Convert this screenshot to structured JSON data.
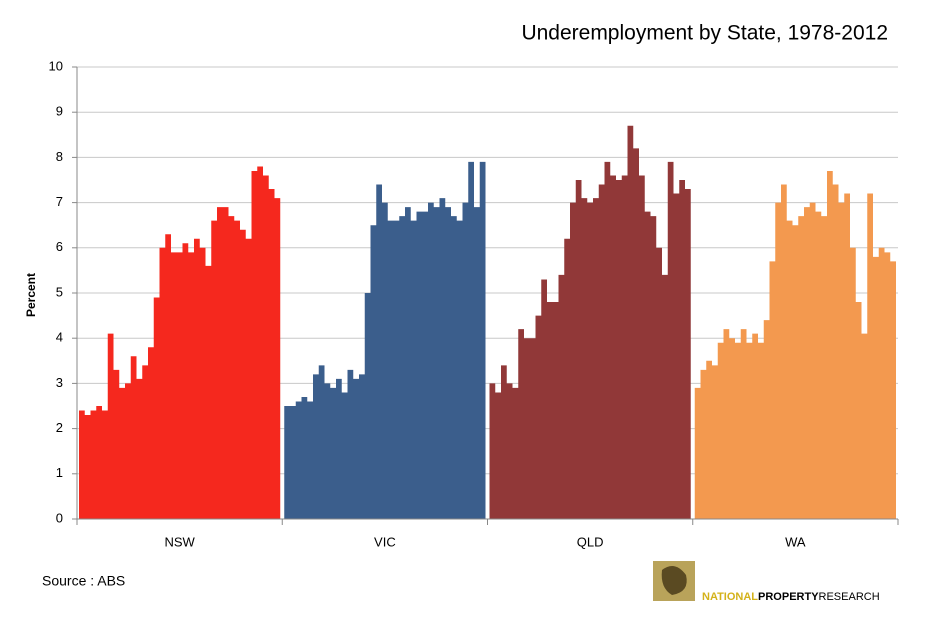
{
  "chart_data": {
    "type": "area",
    "title": "Underemployment by State, 1978-2012",
    "ylabel": "Percent",
    "source": "Source : ABS",
    "logo": [
      "NATIONAL",
      "PROPERTY",
      "RESEARCH"
    ],
    "ylim": [
      0,
      10
    ],
    "yticks": [
      0,
      1,
      2,
      3,
      4,
      5,
      6,
      7,
      8,
      9,
      10
    ],
    "grid": true,
    "series": [
      {
        "name": "NSW",
        "color": "#f5281e",
        "values": [
          2.4,
          2.3,
          2.4,
          2.5,
          2.4,
          4.1,
          3.3,
          2.9,
          3.0,
          3.6,
          3.1,
          3.4,
          3.8,
          4.9,
          6.0,
          6.3,
          5.9,
          5.9,
          6.1,
          5.9,
          6.2,
          6.0,
          5.6,
          6.6,
          6.9,
          6.9,
          6.7,
          6.6,
          6.4,
          6.2,
          7.7,
          7.8,
          7.6,
          7.3,
          7.1
        ]
      },
      {
        "name": "VIC",
        "color": "#3b5e8c",
        "values": [
          2.5,
          2.5,
          2.6,
          2.7,
          2.6,
          3.2,
          3.4,
          3.0,
          2.9,
          3.1,
          2.8,
          3.3,
          3.1,
          3.2,
          5.0,
          6.5,
          7.4,
          7.0,
          6.6,
          6.6,
          6.7,
          6.9,
          6.6,
          6.8,
          6.8,
          7.0,
          6.9,
          7.1,
          6.9,
          6.7,
          6.6,
          7.0,
          7.9,
          6.9,
          7.9
        ]
      },
      {
        "name": "QLD",
        "color": "#913838",
        "values": [
          3.0,
          2.8,
          3.4,
          3.0,
          2.9,
          4.2,
          4.0,
          4.0,
          4.5,
          5.3,
          4.8,
          4.8,
          5.4,
          6.2,
          7.0,
          7.5,
          7.1,
          7.0,
          7.1,
          7.4,
          7.9,
          7.6,
          7.5,
          7.6,
          8.7,
          8.2,
          7.6,
          6.8,
          6.7,
          6.0,
          5.4,
          7.9,
          7.2,
          7.5,
          7.3
        ]
      },
      {
        "name": "WA",
        "color": "#f3994f",
        "values": [
          2.9,
          3.3,
          3.5,
          3.4,
          3.9,
          4.2,
          4.0,
          3.9,
          4.2,
          3.9,
          4.1,
          3.9,
          4.4,
          5.7,
          7.0,
          7.4,
          6.6,
          6.5,
          6.7,
          6.9,
          7.0,
          6.8,
          6.7,
          7.7,
          7.4,
          7.0,
          7.2,
          6.0,
          4.8,
          4.1,
          7.2,
          5.8,
          6.0,
          5.9,
          5.7
        ]
      }
    ]
  }
}
